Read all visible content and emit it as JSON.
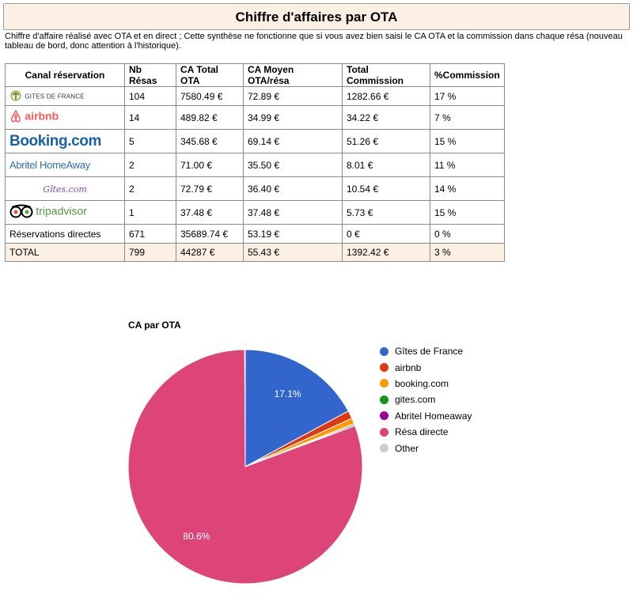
{
  "header": {
    "title": "Chiffre d'affaires par OTA",
    "intro": "Chiffre d'affaire réalisé avec OTA et en direct ; Cette synthèse ne fonctionne que si vous avez bien saisi le CA OTA et la commission dans chaque résa (nouveau tableau de bord, donc attention à l'historique)."
  },
  "table": {
    "columns": [
      "Canal réservation",
      "Nb Résas",
      "CA Total OTA",
      "CA Moyen OTA/résa",
      "Total Commission",
      "%Commission"
    ],
    "rows": [
      {
        "channel": "GITES DE FRANCE",
        "logo": "gites-de-france-logo",
        "nb": "104",
        "total": "7580.49 €",
        "avg": "72.89 €",
        "commission": "1282.66 €",
        "pct": "17 %"
      },
      {
        "channel": "airbnb",
        "logo": "airbnb-logo",
        "nb": "14",
        "total": "489.82 €",
        "avg": "34.99 €",
        "commission": "34.22 €",
        "pct": "7 %"
      },
      {
        "channel": "Booking.com",
        "logo": "booking-logo",
        "nb": "5",
        "total": "345.68 €",
        "avg": "69.14 €",
        "commission": "51.26 €",
        "pct": "15 %"
      },
      {
        "channel": "Abritel HomeAway",
        "logo": "abritel-homeaway-logo",
        "nb": "2",
        "total": "71.00 €",
        "avg": "35.50 €",
        "commission": "8.01 €",
        "pct": "11 %"
      },
      {
        "channel": "Gîtes.com",
        "logo": "gites-com-logo",
        "nb": "2",
        "total": "72.79 €",
        "avg": "36.40 €",
        "commission": "10.54 €",
        "pct": "14 %"
      },
      {
        "channel": "tripadvisor",
        "logo": "tripadvisor-logo",
        "nb": "1",
        "total": "37.48 €",
        "avg": "37.48 €",
        "commission": "5.73 €",
        "pct": "15 %"
      },
      {
        "channel": "Réservations directes",
        "nb": "671",
        "total": "35689.74 €",
        "avg": "53.19 €",
        "commission": "0 €",
        "pct": "0 %"
      }
    ],
    "total": {
      "channel": "TOTAL",
      "nb": "799",
      "total": "44287 €",
      "avg": "55.43 €",
      "commission": "1392.42 €",
      "pct": "3 %"
    }
  },
  "colors": {
    "title_bg": "#fcefe4",
    "gites_de_france": "#3366cc",
    "airbnb": "#dc3912",
    "booking": "#ff9900",
    "gites_com": "#109618",
    "abritel": "#990099",
    "direct": "#dd4477",
    "other": "#cccccc"
  },
  "chart_data": {
    "type": "pie",
    "title": "CA par OTA",
    "legend_position": "right",
    "slices": [
      {
        "name": "Gîtes de France",
        "value": 7580.49,
        "label": "17.1%",
        "color": "#3366cc"
      },
      {
        "name": "airbnb",
        "value": 489.82,
        "label": "",
        "color": "#dc3912"
      },
      {
        "name": "booking.com",
        "value": 345.68,
        "label": "",
        "color": "#ff9900"
      },
      {
        "name": "gites.com",
        "value": 72.79,
        "label": "",
        "color": "#109618"
      },
      {
        "name": "Abritel Homeaway",
        "value": 71.0,
        "label": "",
        "color": "#990099"
      },
      {
        "name": "Résa directe",
        "value": 35689.74,
        "label": "80.6%",
        "color": "#dd4477"
      },
      {
        "name": "Other",
        "value": 37.48,
        "label": "",
        "color": "#cccccc"
      }
    ]
  }
}
